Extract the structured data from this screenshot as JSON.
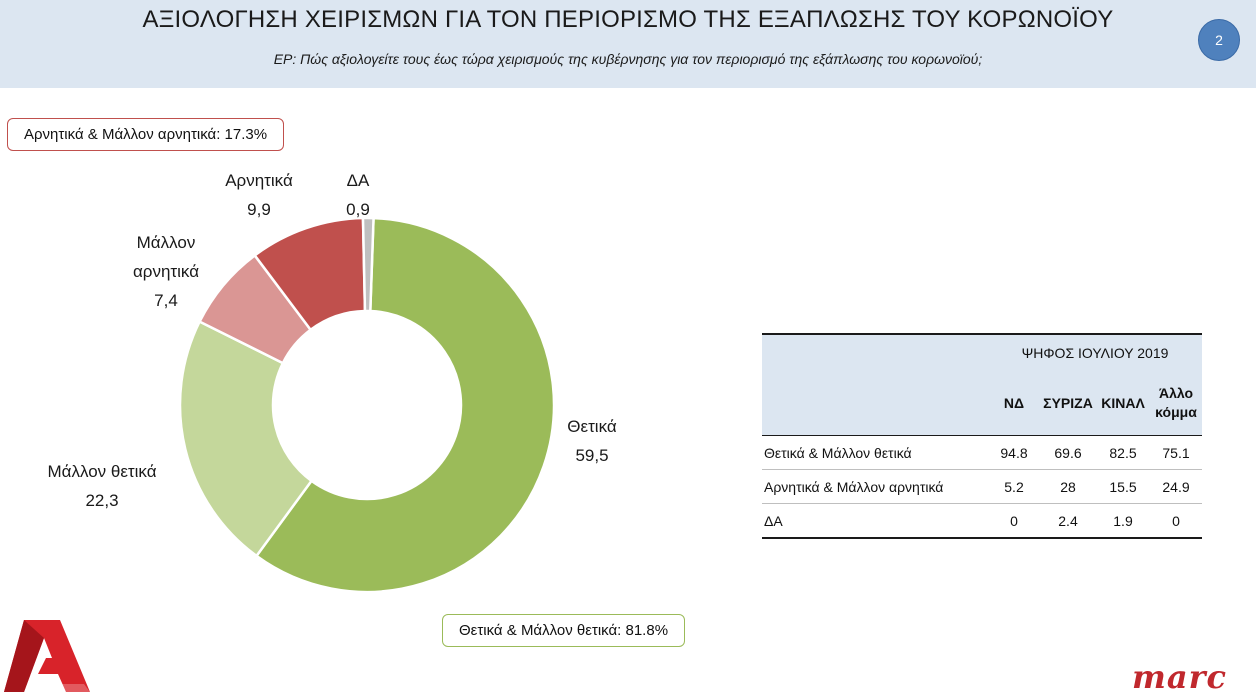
{
  "header": {
    "title": "ΑΞΙΟΛΟΓΗΣΗ ΧΕΙΡΙΣΜΩΝ ΓΙΑ ΤΟΝ ΠΕΡΙΟΡΙΣΜΟ ΤΗΣ ΕΞΑΠΛΩΣΗΣ ΤΟΥ ΚΟΡΩΝΟΪΟΥ",
    "subtitle": "ΕΡ: Πώς αξιολογείτε τους έως τώρα χειρισμούς της κυβέρνησης για τον περιορισμό της εξάπλωσης του κορωνοϊού;",
    "page_number": "2"
  },
  "summaries": {
    "negative": "Αρνητικά & Μάλλον αρνητικά: 17.3%",
    "positive": "Θετικά & Μάλλον θετικά: 81.8%"
  },
  "chart_data": [
    {
      "type": "pie",
      "donut": true,
      "categories": [
        "Θετικά",
        "Μάλλον θετικά",
        "Μάλλον αρνητικά",
        "Αρνητικά",
        "ΔΑ"
      ],
      "values": [
        59.5,
        22.3,
        7.4,
        9.9,
        0.9
      ],
      "value_labels": [
        "59,5",
        "22,3",
        "7,4",
        "9,9",
        "0,9"
      ],
      "label_lines": [
        [
          "Θετικά"
        ],
        [
          "Μάλλον θετικά"
        ],
        [
          "Μάλλον",
          "αρνητικά"
        ],
        [
          "Αρνητικά"
        ],
        [
          "ΔΑ"
        ]
      ],
      "colors": [
        "#9bbb59",
        "#c4d79b",
        "#da9694",
        "#c0504d",
        "#bfbfbf"
      ],
      "legend": "none"
    },
    {
      "type": "table",
      "group_header": "ΨΗΦΟΣ ΙΟΥΛΙΟΥ 2019",
      "columns": [
        "ΝΔ",
        "ΣΥΡΙΖΑ",
        "ΚΙΝΑΛ",
        "Άλλο κόμμα"
      ],
      "rows": [
        {
          "label": "Θετικά & Μάλλον θετικά",
          "values": [
            "94.8",
            "69.6",
            "82.5",
            "75.1"
          ]
        },
        {
          "label": "Αρνητικά & Μάλλον αρνητικά",
          "values": [
            "5.2",
            "28",
            "15.5",
            "24.9"
          ]
        },
        {
          "label": "ΔΑ",
          "values": [
            "0",
            "2.4",
            "1.9",
            "0"
          ]
        }
      ]
    }
  ],
  "logos": {
    "left_icon": "alpha-tv-logo-icon",
    "right_text": "marc"
  }
}
